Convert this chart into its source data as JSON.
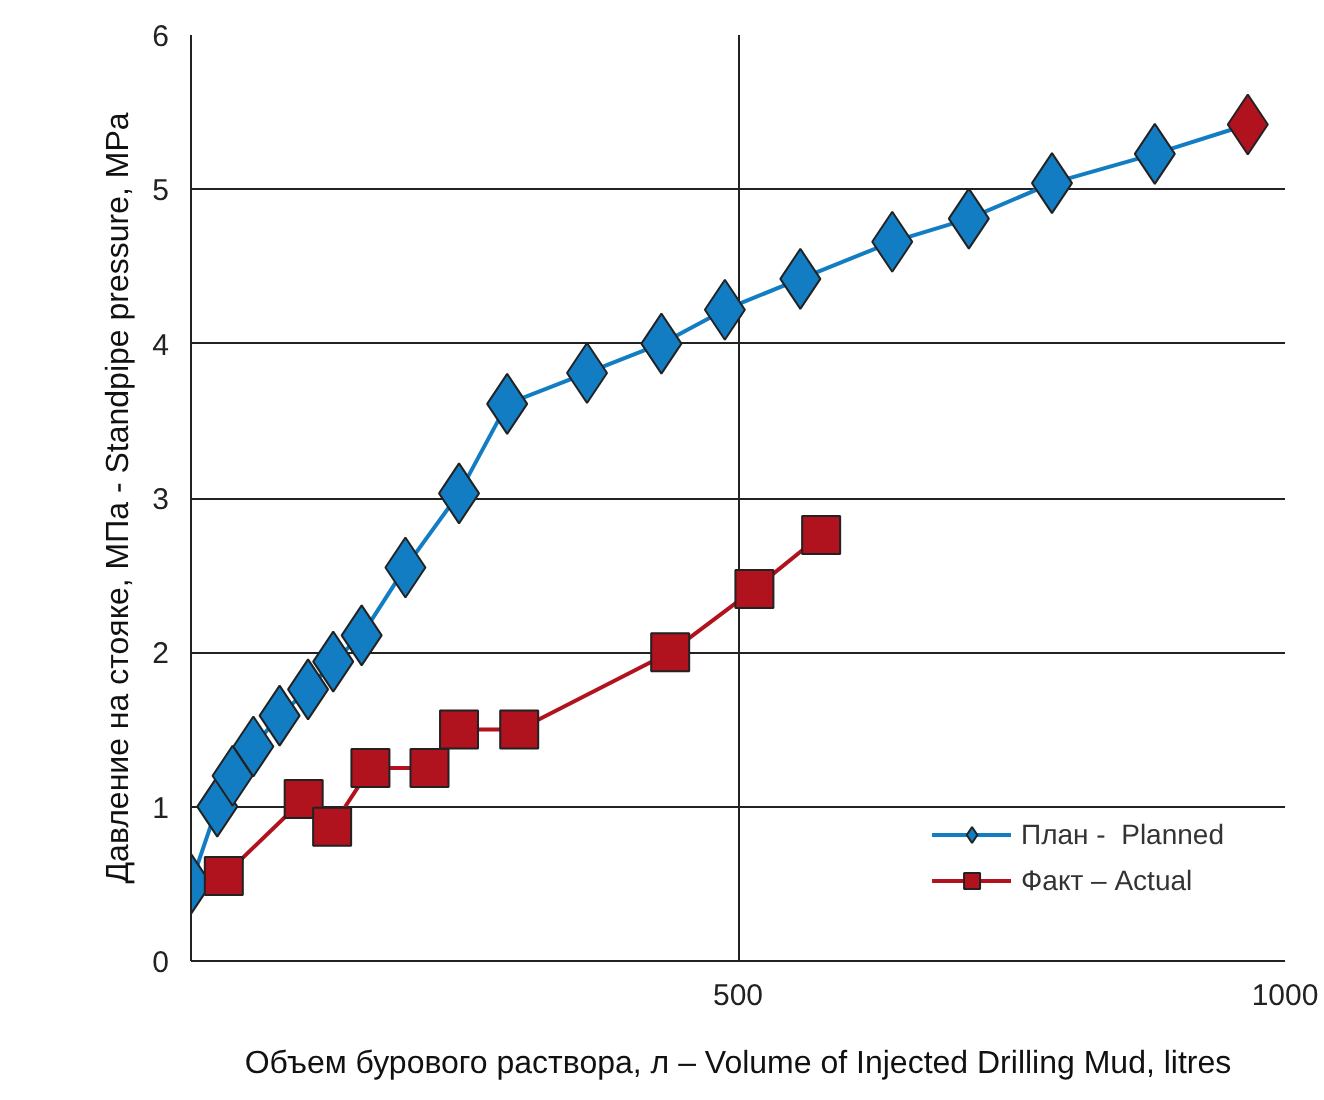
{
  "chart_data": {
    "type": "line",
    "xlabel": "Объем бурового раствора, л – Volume of Injected Drilling Mud, litres",
    "ylabel": "Давление на стояке, МПа - Standpipe pressure, MPa",
    "xlim": [
      0,
      1000
    ],
    "ylim": [
      0,
      6
    ],
    "xticks": [
      500,
      1000
    ],
    "yticks": [
      0,
      1,
      2,
      3,
      4,
      5,
      6
    ],
    "grid": true,
    "legend": "bottom right",
    "line_style": "solid",
    "series": [
      {
        "name": "План -  Planned",
        "color": "#127dc2",
        "marker": "diamond",
        "x": [
          0,
          24,
          38,
          57,
          81,
          107,
          130,
          156,
          196,
          245,
          289,
          362,
          430,
          488,
          557,
          641,
          711,
          787,
          881,
          966
        ],
        "values": [
          0.5,
          1.0,
          1.2,
          1.39,
          1.59,
          1.76,
          1.94,
          2.11,
          2.55,
          3.03,
          3.61,
          3.81,
          4.0,
          4.22,
          4.42,
          4.66,
          4.81,
          5.04,
          5.23,
          5.42
        ],
        "colors": [
          "#127dc2",
          "#127dc2",
          "#127dc2",
          "#127dc2",
          "#127dc2",
          "#127dc2",
          "#127dc2",
          "#127dc2",
          "#127dc2",
          "#127dc2",
          "#127dc2",
          "#127dc2",
          "#127dc2",
          "#127dc2",
          "#127dc2",
          "#127dc2",
          "#127dc2",
          "#127dc2",
          "#127dc2",
          "#b0121e"
        ]
      },
      {
        "name": "Факт – Actual",
        "color": "#b0121e",
        "marker": "square",
        "x": [
          30,
          103,
          129,
          164,
          218,
          245,
          300,
          438,
          515,
          576
        ],
        "values": [
          0.55,
          1.05,
          0.87,
          1.25,
          1.25,
          1.5,
          1.5,
          2.0,
          2.41,
          2.76
        ]
      }
    ]
  }
}
